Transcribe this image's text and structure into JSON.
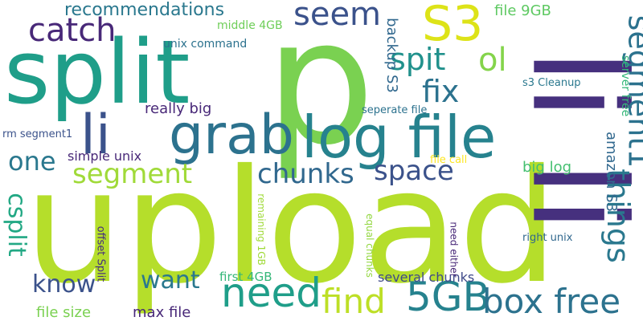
{
  "words": [
    {
      "key": "upload",
      "text": "upload",
      "color": "#b5de2b"
    },
    {
      "key": "p",
      "text": "p",
      "color": "#7ad151"
    },
    {
      "key": "split",
      "text": "split",
      "color": "#1f9e89"
    },
    {
      "key": "li_big",
      "text": "li li",
      "color": "#46307e"
    },
    {
      "key": "log_file",
      "text": "log file",
      "color": "#26828e"
    },
    {
      "key": "grab",
      "text": "grab",
      "color": "#2c728e"
    },
    {
      "key": "li_small",
      "text": "li",
      "color": "#3b528b"
    },
    {
      "key": "need",
      "text": "need",
      "color": "#1f9e89"
    },
    {
      "key": "5gb",
      "text": "5GB",
      "color": "#26828e"
    },
    {
      "key": "box_free",
      "text": "box free",
      "color": "#2c728e"
    },
    {
      "key": "find",
      "text": "find",
      "color": "#bddf26"
    },
    {
      "key": "s3_big",
      "text": "S3",
      "color": "#dde318"
    },
    {
      "key": "seem",
      "text": "seem",
      "color": "#3b528b"
    },
    {
      "key": "catch",
      "text": "catch",
      "color": "#482878"
    },
    {
      "key": "ol",
      "text": "ol",
      "color": "#84d44b"
    },
    {
      "key": "spit",
      "text": "spit",
      "color": "#21918c"
    },
    {
      "key": "fix",
      "text": "fix",
      "color": "#2c728e"
    },
    {
      "key": "segment1",
      "text": "segment1",
      "color": "#2c728e"
    },
    {
      "key": "things",
      "text": "things",
      "color": "#2a788e"
    },
    {
      "key": "chunks_big",
      "text": "chunks",
      "color": "#31688e"
    },
    {
      "key": "space",
      "text": "space",
      "color": "#3b528b"
    },
    {
      "key": "segment",
      "text": "segment",
      "color": "#a0da39"
    },
    {
      "key": "one",
      "text": "one",
      "color": "#2a788e"
    },
    {
      "key": "csplit",
      "text": "csplit",
      "color": "#22a884"
    },
    {
      "key": "know",
      "text": "know",
      "color": "#3b528b"
    },
    {
      "key": "want",
      "text": "want",
      "color": "#2a788e"
    },
    {
      "key": "recommendations",
      "text": "recommendations",
      "color": "#2a788e"
    },
    {
      "key": "really_big",
      "text": "really big",
      "color": "#482878"
    },
    {
      "key": "file_9gb",
      "text": "file 9GB",
      "color": "#5ec962"
    },
    {
      "key": "backup_s3",
      "text": "backup S3",
      "color": "#31688e"
    },
    {
      "key": "amazon_s3",
      "text": "amazon S3",
      "color": "#31688e"
    },
    {
      "key": "big_log",
      "text": "big log",
      "color": "#44bf70"
    },
    {
      "key": "simple_unix",
      "text": "simple unix",
      "color": "#482878"
    },
    {
      "key": "max_file",
      "text": "max file",
      "color": "#482878"
    },
    {
      "key": "file_size",
      "text": "file size",
      "color": "#7ad151"
    },
    {
      "key": "first_4gb",
      "text": "first 4GB",
      "color": "#35b779"
    },
    {
      "key": "several_chunks",
      "text": "several chunks",
      "color": "#3e4989"
    },
    {
      "key": "middle_4gb",
      "text": "middle 4GB",
      "color": "#6ece58"
    },
    {
      "key": "unix_command",
      "text": "unix command",
      "color": "#2c728e"
    },
    {
      "key": "s3_cleanup",
      "text": "s3 Cleanup",
      "color": "#2a788e"
    },
    {
      "key": "server_free",
      "text": "server free",
      "color": "#35b779"
    },
    {
      "key": "seperate_file",
      "text": "seperate file",
      "color": "#2c728e"
    },
    {
      "key": "rm_segment1",
      "text": "rm segment1",
      "color": "#3b528b"
    },
    {
      "key": "file_call",
      "text": "file call",
      "color": "#fde725"
    },
    {
      "key": "right_unix",
      "text": "right unix",
      "color": "#31688e"
    },
    {
      "key": "remaining_1gb",
      "text": "remaining 1GB",
      "color": "#a0da39"
    },
    {
      "key": "equal_chunks",
      "text": "equal chunks",
      "color": "#93d741"
    },
    {
      "key": "need_either",
      "text": "need either",
      "color": "#482878"
    },
    {
      "key": "offset_split",
      "text": "offset Split",
      "color": "#46307e"
    }
  ]
}
